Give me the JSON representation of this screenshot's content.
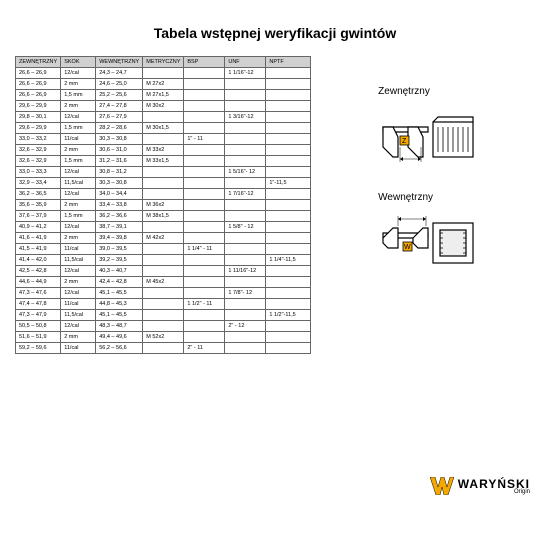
{
  "title": "Tabela wstępnej weryfikacji gwintów",
  "columns": [
    "ZEWNĘTRZNY",
    "SKOK",
    "WEWNĘTRZNY",
    "METRYCZNY",
    "BSP",
    "UNF",
    "NPTF"
  ],
  "rows": [
    [
      "26,6 – 26,9",
      "12/cal",
      "24,3 – 24,7",
      "",
      "",
      "1 1/16\"-12",
      ""
    ],
    [
      "26,6 – 26,9",
      "2 mm",
      "24,6 – 25,0",
      "M 27x2",
      "",
      "",
      ""
    ],
    [
      "26,6 – 26,9",
      "1,5 mm",
      "25,2 – 25,6",
      "M 27x1,5",
      "",
      "",
      ""
    ],
    [
      "29,6 – 29,9",
      "2 mm",
      "27,4 – 27,8",
      "M 30x2",
      "",
      "",
      ""
    ],
    [
      "29,8 – 30,1",
      "12/cal",
      "27,6 – 27,9",
      "",
      "",
      "1 3/16\"-12",
      ""
    ],
    [
      "29,6 – 29,9",
      "1,5 mm",
      "28,2 – 28,6",
      "M 30x1,5",
      "",
      "",
      ""
    ],
    [
      "33,0 – 33,2",
      "11/cal",
      "30,3 – 30,8",
      "",
      "1\" - 11",
      "",
      ""
    ],
    [
      "32,6 – 32,9",
      "2 mm",
      "30,6 – 31,0",
      "M 33x2",
      "",
      "",
      ""
    ],
    [
      "32,6 – 32,9",
      "1,5 mm",
      "31,2 – 31,6",
      "M 33x1,5",
      "",
      "",
      ""
    ],
    [
      "33,0 – 33,3",
      "12/cal",
      "30,8 – 31,2",
      "",
      "",
      "1 5/16\"- 12",
      ""
    ],
    [
      "32,9 – 33,4",
      "11,5/cal",
      "30,3 – 30,8",
      "",
      "",
      "",
      "1\"-11,5"
    ],
    [
      "36,2 – 36,5",
      "12/cal",
      "34,0 – 34,4",
      "",
      "",
      "1 7/16\"-12",
      ""
    ],
    [
      "35,6 – 35,9",
      "2 mm",
      "33,4 – 33,8",
      "M 36x2",
      "",
      "",
      ""
    ],
    [
      "37,6 – 37,9",
      "1,5 mm",
      "36,2 – 36,6",
      "M 38x1,5",
      "",
      "",
      ""
    ],
    [
      "40,9 – 41,2",
      "12/cal",
      "38,7 – 39,1",
      "",
      "",
      "1 5/8\" - 12",
      ""
    ],
    [
      "41,6 – 41,9",
      "2 mm",
      "39,4 – 39,8",
      "M 42x2",
      "",
      "",
      ""
    ],
    [
      "41,5 – 41,9",
      "11/cal",
      "39,0 – 39,5",
      "",
      "1 1/4\" - 11",
      "",
      ""
    ],
    [
      "41,4 – 42,0",
      "11,5/cal",
      "39,2 – 39,5",
      "",
      "",
      "",
      "1 1/4\"-11,5"
    ],
    [
      "42,5 – 42,8",
      "12/cal",
      "40,3 – 40,7",
      "",
      "",
      "1 11/16\"-12",
      ""
    ],
    [
      "44,6 – 44,9",
      "2 mm",
      "42,4 – 42,8",
      "M 45x2",
      "",
      "",
      ""
    ],
    [
      "47,3 – 47,6",
      "12/cal",
      "45,1 – 45,5",
      "",
      "",
      "1 7/8\"- 12",
      ""
    ],
    [
      "47,4 – 47,8",
      "11/cal",
      "44,8 – 45,3",
      "",
      "1 1/2\" - 11",
      "",
      ""
    ],
    [
      "47,3 – 47,9",
      "11,5/cal",
      "45,1 – 45,5",
      "",
      "",
      "",
      "1 1/2\"-11,5"
    ],
    [
      "50,5 – 50,8",
      "12/cal",
      "48,3 – 48,7",
      "",
      "",
      "2\" - 12",
      ""
    ],
    [
      "51,6 – 51,9",
      "2 mm",
      "49,4 – 49,6",
      "M 52x2",
      "",
      "",
      ""
    ],
    [
      "59,2 – 59,6",
      "11/cal",
      "56,2 – 56,6",
      "",
      "2\" - 11",
      "",
      ""
    ]
  ],
  "diag1_label": "Zewnętrzny",
  "diag2_label": "Wewnętrzny",
  "logo_text": "WARYŃSKI",
  "logo_sub": "Origin",
  "colors": {
    "header_bg": "#d0d0d0",
    "border": "#666666",
    "logo_yellow": "#f5a800",
    "text": "#000000"
  }
}
